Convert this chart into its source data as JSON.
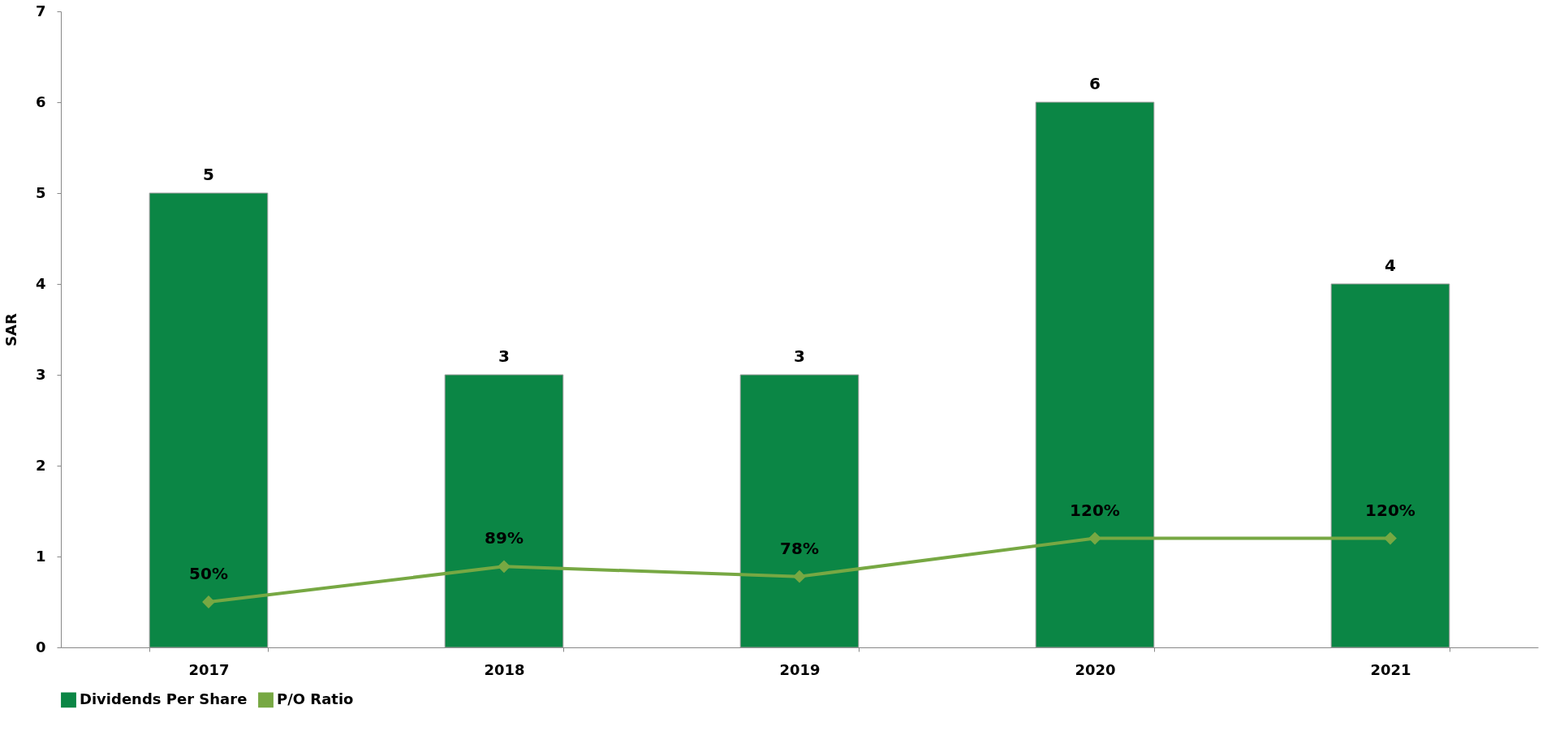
{
  "chart_data": {
    "type": "bar",
    "ylabel": "SAR",
    "categories": [
      "2017",
      "2018",
      "2019",
      "2020",
      "2021"
    ],
    "series": [
      {
        "name": "Dividends Per Share",
        "color": "#0b8645",
        "values": [
          5,
          3,
          3,
          6,
          4
        ],
        "value_labels": [
          "5",
          "3",
          "3",
          "6",
          "4"
        ]
      },
      {
        "name": "P/O Ratio",
        "type": "line",
        "color": "#77a843",
        "marker": "diamond",
        "values": [
          0.5,
          0.89,
          0.78,
          1.2,
          1.2
        ],
        "value_labels": [
          "50%",
          "89%",
          "78%",
          "120%",
          "120%"
        ]
      }
    ],
    "ylim": [
      0,
      7
    ],
    "yticks": [
      0,
      1,
      2,
      3,
      4,
      5,
      6,
      7
    ],
    "grid": false,
    "legend": "bottom"
  }
}
